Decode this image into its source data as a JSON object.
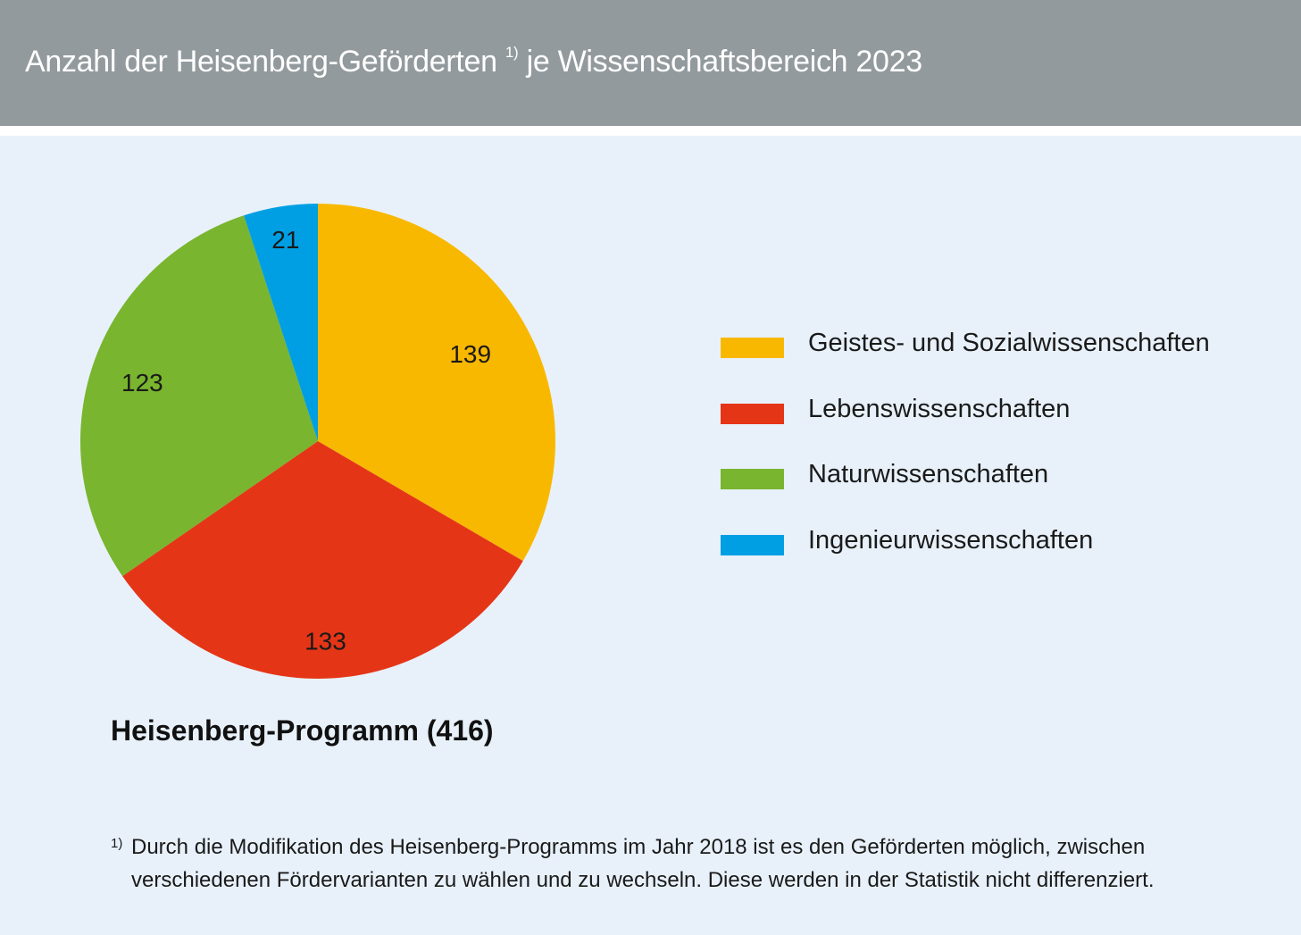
{
  "header": {
    "title_main": "Anzahl der Heisenberg-Geförderten",
    "title_sup": "1)",
    "title_rest": " je Wissenschaftsbereich 2023"
  },
  "colors": {
    "header_bg": "#939a9d",
    "panel_bg": "#e8f1fa",
    "yellow": "#f9b800",
    "red": "#e53517",
    "green": "#79b52e",
    "blue": "#009fe3"
  },
  "chart_data": {
    "type": "pie",
    "title": "Anzahl der Heisenberg-Geförderten je Wissenschaftsbereich 2023",
    "caption": "Heisenberg-Programm (416)",
    "start_angle": "12 o'clock",
    "direction": "clockwise",
    "legend_position": "right",
    "categories": [
      "Geistes- und Sozialwissenschaften",
      "Lebenswissenschaften",
      "Naturwissenschaften",
      "Ingenieurwissenschaften"
    ],
    "values": [
      139,
      133,
      123,
      21
    ],
    "colors": [
      "#f9b800",
      "#e53517",
      "#79b52e",
      "#009fe3"
    ],
    "total": 416
  },
  "legend": {
    "items": [
      {
        "label": "Geistes- und Sozialwissenschaften"
      },
      {
        "label": "Lebenswissenschaften"
      },
      {
        "label": "Naturwissenschaften"
      },
      {
        "label": "Ingenieurwissenschaften"
      }
    ]
  },
  "footnote": {
    "mark": "1)",
    "text": "Durch die Modifikation des Heisenberg-Programms im Jahr 2018 ist es den Geförderten möglich, zwischen verschiedenen Fördervarianten zu wählen und zu wechseln. Diese werden in der Statistik nicht differenziert."
  }
}
